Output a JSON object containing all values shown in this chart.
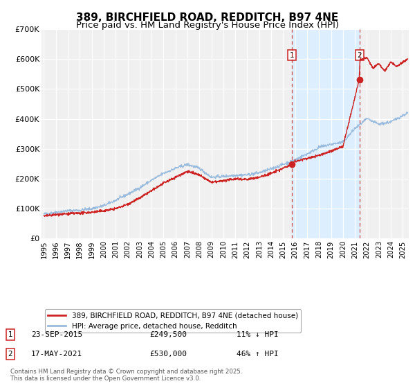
{
  "title": "389, BIRCHFIELD ROAD, REDDITCH, B97 4NE",
  "subtitle": "Price paid vs. HM Land Registry's House Price Index (HPI)",
  "xlim": [
    1994.8,
    2025.5
  ],
  "ylim": [
    0,
    700000
  ],
  "yticks": [
    0,
    100000,
    200000,
    300000,
    400000,
    500000,
    600000,
    700000
  ],
  "ytick_labels": [
    "£0",
    "£100K",
    "£200K",
    "£300K",
    "£400K",
    "£500K",
    "£600K",
    "£700K"
  ],
  "xtick_years": [
    1995,
    1996,
    1997,
    1998,
    1999,
    2000,
    2001,
    2002,
    2003,
    2004,
    2005,
    2006,
    2007,
    2008,
    2009,
    2010,
    2011,
    2012,
    2013,
    2014,
    2015,
    2016,
    2017,
    2018,
    2019,
    2020,
    2021,
    2022,
    2023,
    2024,
    2025
  ],
  "background_color": "#ffffff",
  "plot_bg_color": "#f0f0f0",
  "grid_color": "#ffffff",
  "hpi_color": "#99bbdd",
  "price_color": "#cc2222",
  "sale1_x": 2015.73,
  "sale1_y": 249500,
  "sale2_x": 2021.38,
  "sale2_y": 530000,
  "vline1_x": 2015.73,
  "vline2_x": 2021.38,
  "shade_color": "#ddeeff",
  "legend_label1": "389, BIRCHFIELD ROAD, REDDITCH, B97 4NE (detached house)",
  "legend_label2": "HPI: Average price, detached house, Redditch",
  "annotation1_date": "23-SEP-2015",
  "annotation1_price": "£249,500",
  "annotation1_hpi": "11% ↓ HPI",
  "annotation2_date": "17-MAY-2021",
  "annotation2_price": "£530,000",
  "annotation2_hpi": "46% ↑ HPI",
  "footer": "Contains HM Land Registry data © Crown copyright and database right 2025.\nThis data is licensed under the Open Government Licence v3.0.",
  "title_fontsize": 11,
  "subtitle_fontsize": 9.5,
  "hpi_xp": [
    1995,
    1996,
    1997,
    1998,
    1999,
    2000,
    2001,
    2002,
    2003,
    2004,
    2005,
    2006,
    2007,
    2008,
    2009,
    2010,
    2011,
    2012,
    2013,
    2014,
    2015,
    2016,
    2017,
    2018,
    2019,
    2020,
    2021,
    2022,
    2023,
    2024,
    2025.4
  ],
  "hpi_fp": [
    82000,
    88000,
    93000,
    95000,
    100000,
    110000,
    128000,
    148000,
    170000,
    195000,
    218000,
    235000,
    248000,
    235000,
    205000,
    208000,
    212000,
    213000,
    220000,
    233000,
    248000,
    263000,
    283000,
    305000,
    315000,
    322000,
    368000,
    400000,
    382000,
    390000,
    420000
  ],
  "price_xp": [
    1995,
    1996,
    1997,
    1998,
    1999,
    2000,
    2001,
    2002,
    2003,
    2004,
    2005,
    2006,
    2007,
    2008,
    2009,
    2010,
    2011,
    2012,
    2013,
    2014,
    2015,
    2015.73,
    2016,
    2017,
    2018,
    2019,
    2020,
    2021.35,
    2021.42,
    2022,
    2022.5,
    2023,
    2023.5,
    2024,
    2024.5,
    2025.4
  ],
  "price_fp": [
    75000,
    80000,
    83000,
    85000,
    88000,
    93000,
    100000,
    115000,
    135000,
    160000,
    185000,
    205000,
    225000,
    212000,
    188000,
    193000,
    200000,
    198000,
    205000,
    218000,
    235000,
    249500,
    258000,
    268000,
    278000,
    292000,
    308000,
    530000,
    595000,
    605000,
    570000,
    585000,
    560000,
    590000,
    575000,
    600000
  ]
}
